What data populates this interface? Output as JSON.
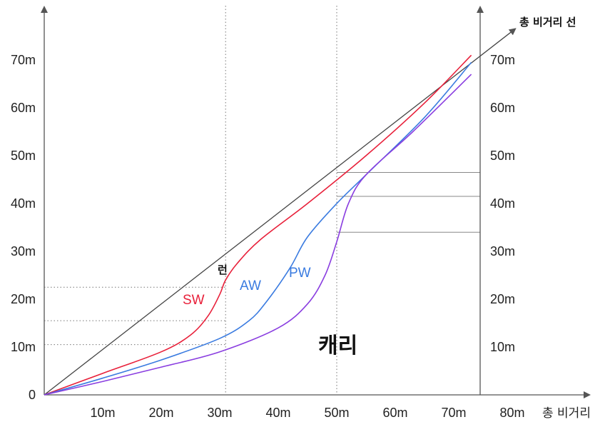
{
  "chart_data": {
    "type": "line",
    "xlabel": "총 비거리",
    "x_ticks": [
      "10m",
      "20m",
      "30m",
      "40m",
      "50m",
      "60m",
      "70m",
      "80m"
    ],
    "y_ticks": [
      "0",
      "10m",
      "20m",
      "30m",
      "40m",
      "50m",
      "60m",
      "70m"
    ],
    "xlim": [
      0,
      80
    ],
    "ylim": [
      0,
      80
    ],
    "reference_line": {
      "label": "총 비거리 선",
      "color": "#444444"
    },
    "annotations": {
      "carry": "캐리",
      "run": "런"
    },
    "series": [
      {
        "name": "SW",
        "color": "#e8203a",
        "points": [
          [
            0,
            0
          ],
          [
            10,
            4.5
          ],
          [
            20,
            9
          ],
          [
            25,
            12.5
          ],
          [
            28,
            16.5
          ],
          [
            30,
            21
          ],
          [
            31,
            24
          ],
          [
            33,
            27.5
          ],
          [
            37,
            32.5
          ],
          [
            45,
            40
          ],
          [
            55,
            50
          ],
          [
            65,
            61
          ],
          [
            73,
            71
          ]
        ]
      },
      {
        "name": "AW",
        "color": "#3a7be0",
        "points": [
          [
            0,
            0
          ],
          [
            10,
            3.5
          ],
          [
            20,
            7.3
          ],
          [
            30,
            11.8
          ],
          [
            35,
            15.5
          ],
          [
            38,
            19.5
          ],
          [
            42,
            26.5
          ],
          [
            45,
            33
          ],
          [
            50,
            40
          ],
          [
            55,
            46
          ],
          [
            65,
            58
          ],
          [
            73,
            69.5
          ]
        ]
      },
      {
        "name": "PW",
        "color": "#8a3ee0",
        "points": [
          [
            0,
            0
          ],
          [
            10,
            2.8
          ],
          [
            20,
            5.8
          ],
          [
            30,
            9
          ],
          [
            40,
            14
          ],
          [
            45,
            19
          ],
          [
            48,
            25
          ],
          [
            50,
            32
          ],
          [
            52,
            40
          ],
          [
            55,
            46
          ],
          [
            63,
            55
          ],
          [
            73,
            67
          ]
        ]
      }
    ],
    "guides": {
      "vertical_x": [
        31,
        50
      ],
      "horizontal_left_y": [
        22.5,
        15.5,
        10.5
      ],
      "horizontal_right_y": [
        46.5,
        41.5,
        34
      ]
    }
  }
}
